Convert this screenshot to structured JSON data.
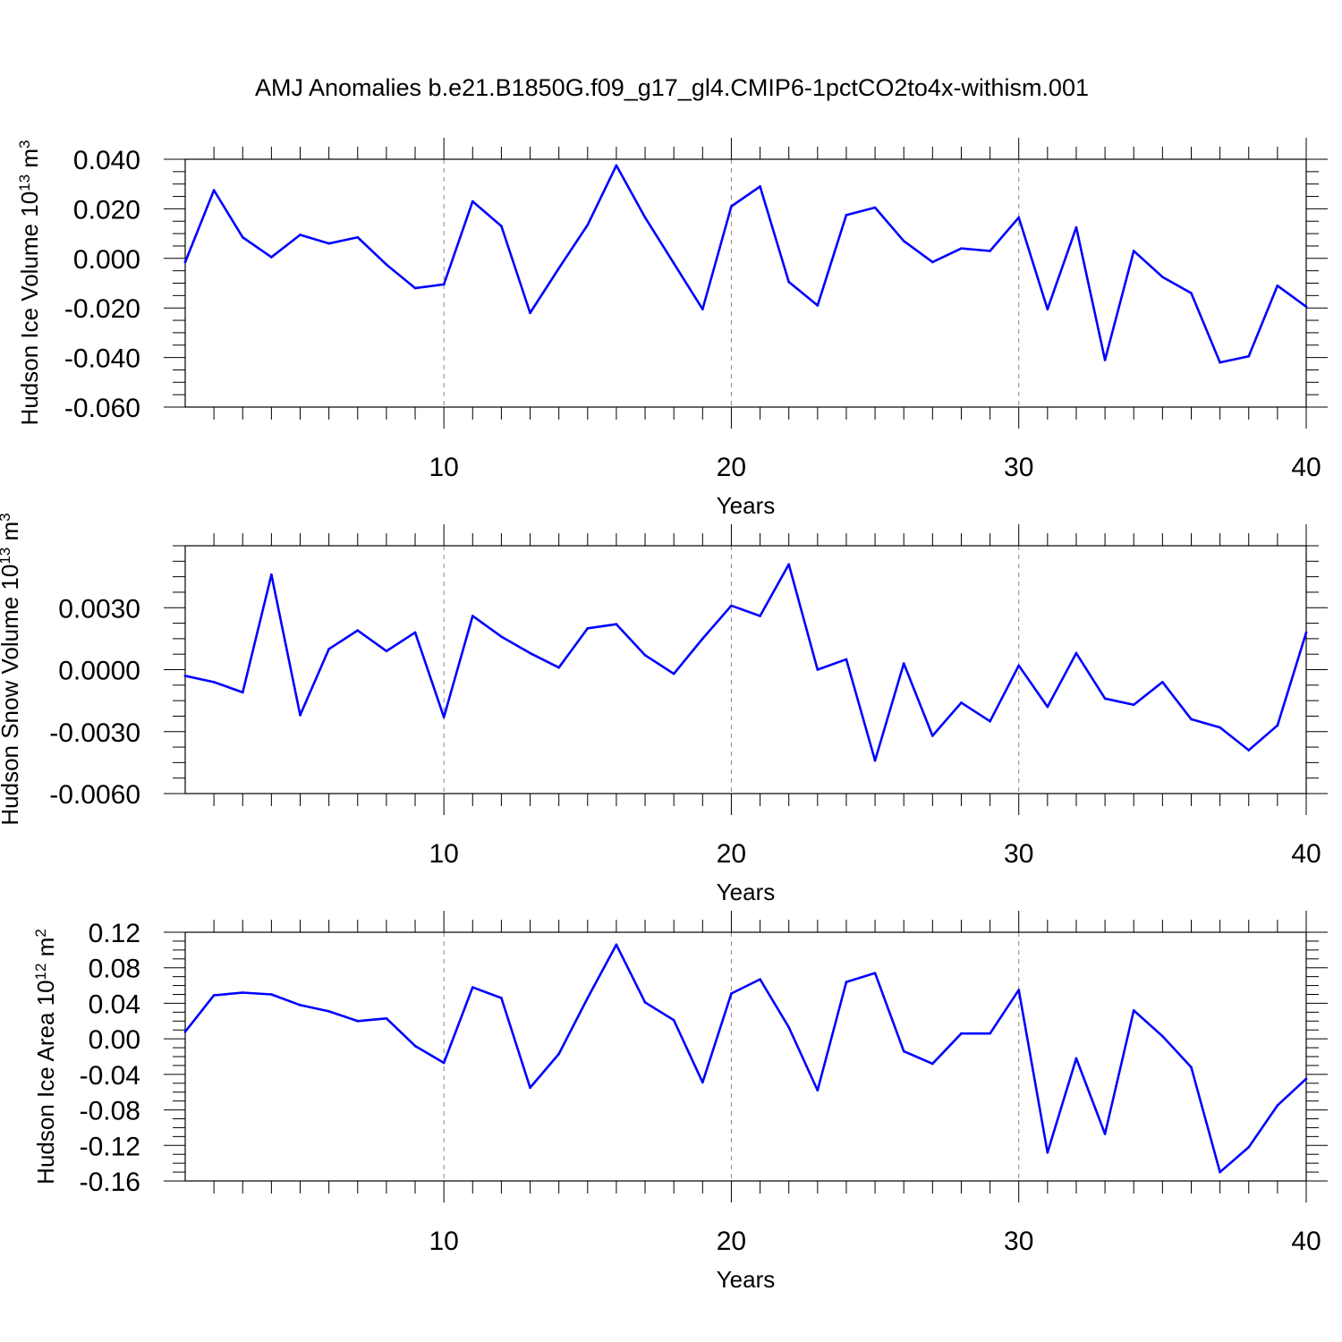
{
  "title": "AMJ Anomalies b.e21.B1850G.f09_g17_gl4.CMIP6-1pctCO2to4x-withism.001",
  "line_color": "#0000ff",
  "chart_data": [
    {
      "type": "line",
      "ylabel": {
        "text": "Hudson Ice Volume 10",
        "sup": "13",
        "unit": " m",
        "unit_sup": "3"
      },
      "xlabel": "Years",
      "xlim": [
        1,
        40
      ],
      "ylim": [
        -0.06,
        0.04
      ],
      "xticks": [
        10,
        20,
        30,
        40
      ],
      "xtick_labels": [
        "10",
        "20",
        "30",
        "40"
      ],
      "yticks": [
        -0.06,
        -0.04,
        -0.02,
        0.0,
        0.02,
        0.04
      ],
      "ytick_labels": [
        "-0.060",
        "-0.040",
        "-0.020",
        "0.000",
        "0.020",
        "0.040"
      ],
      "grid": "dashed vertical at major x ticks",
      "x": [
        1,
        2,
        3,
        4,
        5,
        6,
        7,
        8,
        9,
        10,
        11,
        12,
        13,
        14,
        15,
        16,
        17,
        18,
        19,
        20,
        21,
        22,
        23,
        24,
        25,
        26,
        27,
        28,
        29,
        30,
        31,
        32,
        33,
        34,
        35,
        36,
        37,
        38,
        39,
        40
      ],
      "values": [
        -0.0015,
        0.0275,
        0.0085,
        0.0005,
        0.0095,
        0.006,
        0.0085,
        -0.0025,
        -0.012,
        -0.0105,
        0.023,
        0.013,
        -0.022,
        -0.004,
        0.0135,
        0.0375,
        0.0165,
        -0.002,
        -0.0205,
        0.021,
        0.029,
        -0.0095,
        -0.019,
        0.0175,
        0.0205,
        0.007,
        -0.0015,
        0.004,
        0.003,
        0.0165,
        -0.0205,
        0.0125,
        -0.041,
        0.003,
        -0.0075,
        -0.014,
        -0.042,
        -0.0395,
        -0.011,
        -0.0195
      ]
    },
    {
      "type": "line",
      "ylabel": {
        "text": "Hudson Snow Volume 10",
        "sup": "13",
        "unit": " m",
        "unit_sup": "3"
      },
      "xlabel": "Years",
      "xlim": [
        1,
        40
      ],
      "ylim": [
        -0.006,
        0.006
      ],
      "xticks": [
        10,
        20,
        30,
        40
      ],
      "xtick_labels": [
        "10",
        "20",
        "30",
        "40"
      ],
      "yticks": [
        -0.006,
        -0.003,
        0.0,
        0.003
      ],
      "ytick_labels": [
        "-0.0060",
        "-0.0030",
        "0.0000",
        "0.0030"
      ],
      "grid": "dashed vertical at major x ticks",
      "x": [
        1,
        2,
        3,
        4,
        5,
        6,
        7,
        8,
        9,
        10,
        11,
        12,
        13,
        14,
        15,
        16,
        17,
        18,
        19,
        20,
        21,
        22,
        23,
        24,
        25,
        26,
        27,
        28,
        29,
        30,
        31,
        32,
        33,
        34,
        35,
        36,
        37,
        38,
        39,
        40
      ],
      "values": [
        -0.0003,
        -0.0006,
        -0.0011,
        0.0046,
        -0.0022,
        0.001,
        0.0019,
        0.0009,
        0.0018,
        -0.0023,
        0.0026,
        0.0016,
        0.0008,
        0.0001,
        0.002,
        0.0022,
        0.0007,
        -0.0002,
        0.0015,
        0.0031,
        0.0026,
        0.0051,
        0.0,
        0.0005,
        -0.0044,
        0.0003,
        -0.0032,
        -0.0016,
        -0.0025,
        0.0002,
        -0.0018,
        0.0008,
        -0.0014,
        -0.0017,
        -0.0006,
        -0.0024,
        -0.0028,
        -0.0039,
        -0.0027,
        0.0018
      ]
    },
    {
      "type": "line",
      "ylabel": {
        "text": "Hudson Ice Area 10",
        "sup": "12",
        "unit": " m",
        "unit_sup": "2"
      },
      "xlabel": "Years",
      "xlim": [
        1,
        40
      ],
      "ylim": [
        -0.16,
        0.12
      ],
      "xticks": [
        10,
        20,
        30,
        40
      ],
      "xtick_labels": [
        "10",
        "20",
        "30",
        "40"
      ],
      "yticks": [
        -0.16,
        -0.12,
        -0.08,
        -0.04,
        0.0,
        0.04,
        0.08,
        0.12
      ],
      "ytick_labels": [
        "-0.16",
        "-0.12",
        "-0.08",
        "-0.04",
        "0.00",
        "0.04",
        "0.08",
        "0.12"
      ],
      "grid": "dashed vertical at major x ticks",
      "x": [
        1,
        2,
        3,
        4,
        5,
        6,
        7,
        8,
        9,
        10,
        11,
        12,
        13,
        14,
        15,
        16,
        17,
        18,
        19,
        20,
        21,
        22,
        23,
        24,
        25,
        26,
        27,
        28,
        29,
        30,
        31,
        32,
        33,
        34,
        35,
        36,
        37,
        38,
        39,
        40
      ],
      "values": [
        0.008,
        0.049,
        0.052,
        0.05,
        0.038,
        0.031,
        0.02,
        0.023,
        -0.008,
        -0.027,
        0.058,
        0.046,
        -0.055,
        -0.017,
        0.046,
        0.106,
        0.041,
        0.021,
        -0.049,
        0.051,
        0.067,
        0.013,
        -0.058,
        0.064,
        0.074,
        -0.014,
        -0.028,
        0.006,
        0.006,
        0.055,
        -0.128,
        -0.022,
        -0.107,
        0.032,
        0.003,
        -0.032,
        -0.15,
        -0.122,
        -0.075,
        -0.045
      ]
    }
  ]
}
